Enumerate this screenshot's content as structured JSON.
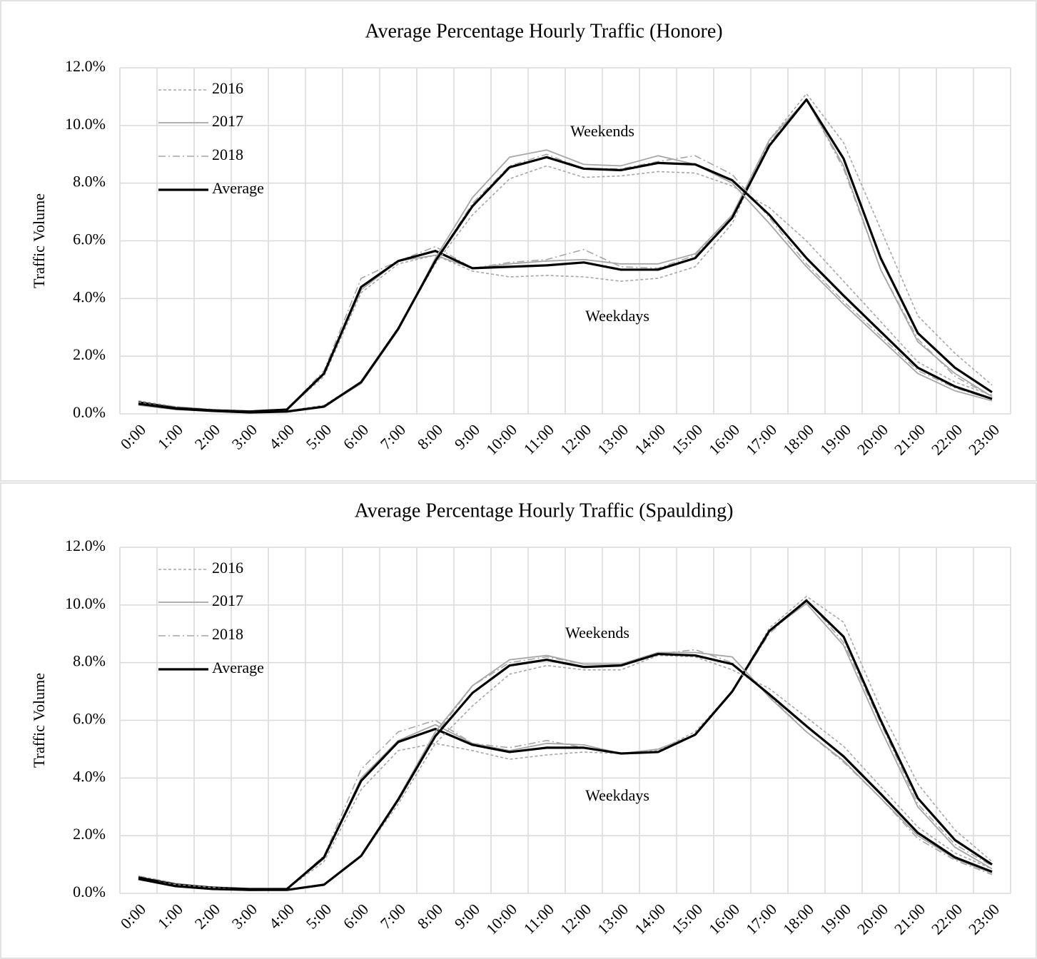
{
  "chart_data": [
    {
      "type": "line",
      "title": "Average Percentage Hourly Traffic (Honore)",
      "y_label": "Traffic Volume",
      "categories": [
        "0:00",
        "1:00",
        "2:00",
        "3:00",
        "4:00",
        "5:00",
        "6:00",
        "7:00",
        "8:00",
        "9:00",
        "10:00",
        "11:00",
        "12:00",
        "13:00",
        "14:00",
        "15:00",
        "16:00",
        "17:00",
        "18:00",
        "19:00",
        "20:00",
        "21:00",
        "22:00",
        "23:00"
      ],
      "labels": {
        "weekends": "Weekends",
        "weekdays": "Weekdays"
      },
      "ylim": [
        0,
        12
      ],
      "yticks": [
        {
          "value": 0,
          "label": "0.0%"
        },
        {
          "value": 2,
          "label": "2.0%"
        },
        {
          "value": 4,
          "label": "4.0%"
        },
        {
          "value": 6,
          "label": "6.0%"
        },
        {
          "value": 8,
          "label": "8.0%"
        },
        {
          "value": 10,
          "label": "10.0%"
        },
        {
          "value": 12,
          "label": "12.0%"
        }
      ],
      "grid": true,
      "legend": "upper-left",
      "series": [
        {
          "name": "2016",
          "color": "#a6a6a6",
          "dash": "dotted",
          "weekdays": [
            0.45,
            0.25,
            0.15,
            0.1,
            0.15,
            1.3,
            4.2,
            5.2,
            5.5,
            4.95,
            4.75,
            4.8,
            4.75,
            4.6,
            4.7,
            5.1,
            6.6,
            9.5,
            11.1,
            9.4,
            6.4,
            3.4,
            2.1,
            1.0
          ],
          "weekends": [
            0.4,
            0.2,
            0.12,
            0.07,
            0.1,
            0.3,
            1.1,
            3.0,
            5.2,
            6.9,
            8.15,
            8.6,
            8.2,
            8.25,
            8.4,
            8.35,
            7.9,
            7.15,
            6.0,
            4.6,
            3.2,
            1.8,
            1.1,
            0.65
          ]
        },
        {
          "name": "2017",
          "color": "#a6a6a6",
          "dash": "solid",
          "weekdays": [
            0.35,
            0.2,
            0.1,
            0.08,
            0.15,
            1.4,
            4.3,
            5.3,
            5.5,
            5.05,
            5.2,
            5.3,
            5.35,
            5.2,
            5.2,
            5.55,
            6.9,
            9.5,
            10.9,
            8.6,
            5.0,
            2.5,
            1.4,
            0.6
          ],
          "weekends": [
            0.3,
            0.15,
            0.1,
            0.05,
            0.08,
            0.25,
            1.05,
            2.9,
            5.4,
            7.5,
            8.9,
            9.15,
            8.65,
            8.6,
            8.95,
            8.65,
            8.0,
            6.6,
            5.1,
            3.8,
            2.6,
            1.4,
            0.8,
            0.45
          ]
        },
        {
          "name": "2018",
          "color": "#a6a6a6",
          "dash": "dashdot",
          "weekdays": [
            0.4,
            0.25,
            0.15,
            0.1,
            0.15,
            1.5,
            4.7,
            5.3,
            5.8,
            5.05,
            5.25,
            5.35,
            5.7,
            5.1,
            5.05,
            5.5,
            6.9,
            9.4,
            10.9,
            8.5,
            5.0,
            2.6,
            1.3,
            0.6
          ],
          "weekends": [
            0.35,
            0.18,
            0.1,
            0.05,
            0.08,
            0.25,
            1.1,
            2.9,
            5.3,
            7.3,
            8.6,
            9.0,
            8.5,
            8.5,
            8.75,
            8.95,
            8.3,
            6.8,
            5.2,
            3.9,
            2.7,
            1.5,
            0.9,
            0.5
          ]
        },
        {
          "name": "Average",
          "color": "#000000",
          "dash": "bold",
          "weekdays": [
            0.4,
            0.2,
            0.12,
            0.08,
            0.15,
            1.4,
            4.4,
            5.3,
            5.65,
            5.05,
            5.1,
            5.15,
            5.25,
            5.0,
            5.0,
            5.4,
            6.8,
            9.3,
            10.9,
            8.85,
            5.4,
            2.8,
            1.6,
            0.75
          ],
          "weekends": [
            0.35,
            0.18,
            0.1,
            0.05,
            0.08,
            0.25,
            1.1,
            2.95,
            5.3,
            7.2,
            8.55,
            8.9,
            8.5,
            8.45,
            8.7,
            8.65,
            8.1,
            6.9,
            5.4,
            4.1,
            2.85,
            1.6,
            0.95,
            0.52
          ]
        }
      ]
    },
    {
      "type": "line",
      "title": "Average Percentage Hourly Traffic (Spaulding)",
      "y_label": "Traffic Volume",
      "categories": [
        "0:00",
        "1:00",
        "2:00",
        "3:00",
        "4:00",
        "5:00",
        "6:00",
        "7:00",
        "8:00",
        "9:00",
        "10:00",
        "11:00",
        "12:00",
        "13:00",
        "14:00",
        "15:00",
        "16:00",
        "17:00",
        "18:00",
        "19:00",
        "20:00",
        "21:00",
        "22:00",
        "23:00"
      ],
      "labels": {
        "weekends": "Weekends",
        "weekdays": "Weekdays"
      },
      "ylim": [
        0,
        12
      ],
      "yticks": [
        {
          "value": 0,
          "label": "0.0%"
        },
        {
          "value": 2,
          "label": "2.0%"
        },
        {
          "value": 4,
          "label": "4.0%"
        },
        {
          "value": 6,
          "label": "6.0%"
        },
        {
          "value": 8,
          "label": "8.0%"
        },
        {
          "value": 10,
          "label": "10.0%"
        },
        {
          "value": 12,
          "label": "12.0%"
        }
      ],
      "grid": true,
      "legend": "upper-left",
      "series": [
        {
          "name": "2016",
          "color": "#a6a6a6",
          "dash": "dotted",
          "weekdays": [
            0.6,
            0.35,
            0.2,
            0.15,
            0.15,
            1.1,
            3.6,
            4.95,
            5.2,
            4.95,
            4.65,
            4.8,
            4.9,
            4.85,
            4.95,
            5.6,
            7.0,
            9.2,
            10.3,
            9.4,
            6.4,
            3.8,
            2.2,
            1.1
          ],
          "weekends": [
            0.5,
            0.3,
            0.2,
            0.12,
            0.12,
            0.3,
            1.3,
            3.1,
            5.2,
            6.5,
            7.6,
            7.9,
            7.75,
            7.75,
            8.25,
            8.2,
            7.75,
            7.1,
            6.1,
            5.1,
            3.7,
            2.3,
            1.4,
            0.85
          ]
        },
        {
          "name": "2017",
          "color": "#a6a6a6",
          "dash": "solid",
          "weekdays": [
            0.55,
            0.3,
            0.2,
            0.15,
            0.15,
            1.2,
            4.0,
            5.3,
            5.85,
            5.2,
            4.95,
            5.2,
            5.15,
            4.85,
            5.0,
            5.5,
            7.0,
            9.1,
            10.05,
            8.6,
            5.7,
            3.0,
            1.6,
            0.85
          ],
          "weekends": [
            0.5,
            0.25,
            0.15,
            0.1,
            0.12,
            0.3,
            1.3,
            3.3,
            5.6,
            7.2,
            8.1,
            8.25,
            7.95,
            7.95,
            8.35,
            8.35,
            8.2,
            6.8,
            5.6,
            4.6,
            3.3,
            2.0,
            1.2,
            0.7
          ]
        },
        {
          "name": "2018",
          "color": "#a6a6a6",
          "dash": "dashdot",
          "weekdays": [
            0.6,
            0.35,
            0.2,
            0.15,
            0.15,
            1.3,
            4.3,
            5.6,
            6.0,
            5.2,
            5.05,
            5.3,
            5.05,
            4.85,
            4.9,
            5.5,
            7.0,
            9.0,
            10.2,
            8.7,
            5.9,
            3.1,
            1.7,
            0.95
          ],
          "weekends": [
            0.5,
            0.25,
            0.15,
            0.1,
            0.12,
            0.3,
            1.3,
            3.3,
            5.5,
            7.2,
            8.0,
            8.2,
            7.95,
            7.95,
            8.3,
            8.45,
            8.0,
            6.85,
            5.6,
            4.55,
            3.3,
            1.9,
            1.15,
            0.65
          ]
        },
        {
          "name": "Average",
          "color": "#000000",
          "dash": "bold",
          "weekdays": [
            0.55,
            0.3,
            0.2,
            0.15,
            0.15,
            1.25,
            3.9,
            5.25,
            5.7,
            5.15,
            4.9,
            5.05,
            5.05,
            4.85,
            4.9,
            5.5,
            7.0,
            9.1,
            10.15,
            8.9,
            6.0,
            3.3,
            1.85,
            1.0
          ],
          "weekends": [
            0.5,
            0.25,
            0.15,
            0.12,
            0.12,
            0.3,
            1.3,
            3.25,
            5.45,
            6.95,
            7.9,
            8.1,
            7.85,
            7.9,
            8.3,
            8.25,
            7.95,
            6.9,
            5.8,
            4.75,
            3.45,
            2.1,
            1.25,
            0.75
          ]
        }
      ]
    }
  ]
}
